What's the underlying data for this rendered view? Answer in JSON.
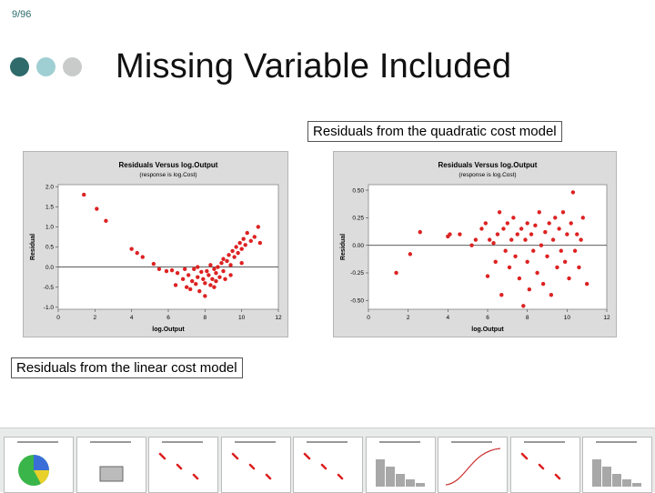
{
  "slide": {
    "page_number": "9/96",
    "title": "Missing Variable Included",
    "dot_colors": [
      "#2f6b6b",
      "#9fcfd3",
      "#c9cbcb"
    ],
    "label_quadratic": "Residuals from the quadratic cost model",
    "label_linear": "Residuals from the linear cost model"
  },
  "chart_data": [
    {
      "type": "scatter",
      "title": "Residuals Versus log.Output",
      "subtitle": "(response is log.Cost)",
      "xlabel": "log.Output",
      "ylabel": "Residual",
      "xlim": [
        0,
        12
      ],
      "ylim": [
        -1.05,
        2.05
      ],
      "xticks": [
        0,
        2,
        4,
        6,
        8,
        10,
        12
      ],
      "yticks": [
        -1.0,
        -0.5,
        0.0,
        0.5,
        1.0,
        1.5,
        2.0
      ],
      "ytick_labels": [
        "-1.0",
        "-0.5",
        "0.0",
        "0.5",
        "1.0",
        "1.5",
        "2.0"
      ],
      "reference_line_y": 0,
      "point_color": "#dd2222",
      "points": [
        [
          1.4,
          1.8
        ],
        [
          2.1,
          1.45
        ],
        [
          2.6,
          1.15
        ],
        [
          4.0,
          0.45
        ],
        [
          4.3,
          0.35
        ],
        [
          4.6,
          0.25
        ],
        [
          5.2,
          0.08
        ],
        [
          5.5,
          -0.05
        ],
        [
          5.9,
          -0.1
        ],
        [
          6.2,
          -0.08
        ],
        [
          6.5,
          -0.15
        ],
        [
          6.4,
          -0.45
        ],
        [
          6.8,
          -0.3
        ],
        [
          7.0,
          -0.5
        ],
        [
          7.1,
          -0.2
        ],
        [
          7.3,
          -0.35
        ],
        [
          7.4,
          -0.05
        ],
        [
          7.5,
          -0.42
        ],
        [
          7.6,
          -0.25
        ],
        [
          7.7,
          -0.6
        ],
        [
          7.8,
          -0.12
        ],
        [
          7.9,
          -0.3
        ],
        [
          8.0,
          -0.4
        ],
        [
          8.0,
          -0.72
        ],
        [
          8.1,
          -0.1
        ],
        [
          8.2,
          -0.2
        ],
        [
          8.3,
          -0.45
        ],
        [
          8.3,
          0.05
        ],
        [
          8.4,
          -0.3
        ],
        [
          8.5,
          -0.05
        ],
        [
          8.6,
          -0.35
        ],
        [
          8.6,
          -0.15
        ],
        [
          8.7,
          0.0
        ],
        [
          8.8,
          -0.25
        ],
        [
          8.9,
          0.1
        ],
        [
          9.0,
          -0.1
        ],
        [
          9.0,
          0.2
        ],
        [
          9.1,
          -0.3
        ],
        [
          9.2,
          0.15
        ],
        [
          9.3,
          0.3
        ],
        [
          9.4,
          0.05
        ],
        [
          9.5,
          0.4
        ],
        [
          9.6,
          0.25
        ],
        [
          9.7,
          0.5
        ],
        [
          9.8,
          0.35
        ],
        [
          9.9,
          0.6
        ],
        [
          10.0,
          0.45
        ],
        [
          10.1,
          0.7
        ],
        [
          10.2,
          0.55
        ],
        [
          10.3,
          0.85
        ],
        [
          10.5,
          0.65
        ],
        [
          10.7,
          0.75
        ],
        [
          10.9,
          1.0
        ],
        [
          11.0,
          0.6
        ],
        [
          7.2,
          -0.55
        ],
        [
          8.5,
          -0.5
        ],
        [
          9.4,
          -0.2
        ],
        [
          6.9,
          -0.05
        ],
        [
          7.6,
          0.0
        ],
        [
          10.0,
          0.1
        ]
      ]
    },
    {
      "type": "scatter",
      "title": "Residuals Versus log.Output",
      "subtitle": "(response is log.Cost)",
      "xlabel": "log.Output",
      "ylabel": "Residual",
      "xlim": [
        0,
        12
      ],
      "ylim": [
        -0.58,
        0.55
      ],
      "xticks": [
        0,
        2,
        4,
        6,
        8,
        10,
        12
      ],
      "yticks": [
        -0.5,
        -0.25,
        0.0,
        0.25,
        0.5
      ],
      "ytick_labels": [
        "-0.50",
        "-0.25",
        "0.00",
        "0.25",
        "0.50"
      ],
      "reference_line_y": 0,
      "point_color": "#dd2222",
      "points": [
        [
          1.4,
          -0.25
        ],
        [
          2.1,
          -0.08
        ],
        [
          2.6,
          0.12
        ],
        [
          4.0,
          0.08
        ],
        [
          4.1,
          0.1
        ],
        [
          4.6,
          0.1
        ],
        [
          5.2,
          0.0
        ],
        [
          5.4,
          0.05
        ],
        [
          5.7,
          0.15
        ],
        [
          5.9,
          0.2
        ],
        [
          6.0,
          -0.28
        ],
        [
          6.1,
          0.05
        ],
        [
          6.3,
          0.02
        ],
        [
          6.4,
          -0.15
        ],
        [
          6.5,
          0.1
        ],
        [
          6.6,
          0.3
        ],
        [
          6.7,
          -0.45
        ],
        [
          6.8,
          0.15
        ],
        [
          6.9,
          -0.05
        ],
        [
          7.0,
          0.2
        ],
        [
          7.1,
          -0.2
        ],
        [
          7.2,
          0.05
        ],
        [
          7.3,
          0.25
        ],
        [
          7.4,
          -0.1
        ],
        [
          7.5,
          0.1
        ],
        [
          7.6,
          -0.3
        ],
        [
          7.7,
          0.15
        ],
        [
          7.8,
          -0.55
        ],
        [
          7.9,
          0.05
        ],
        [
          8.0,
          0.2
        ],
        [
          8.0,
          -0.15
        ],
        [
          8.1,
          -0.4
        ],
        [
          8.2,
          0.1
        ],
        [
          8.3,
          -0.05
        ],
        [
          8.4,
          0.18
        ],
        [
          8.5,
          -0.25
        ],
        [
          8.6,
          0.3
        ],
        [
          8.7,
          0.0
        ],
        [
          8.8,
          -0.35
        ],
        [
          8.9,
          0.12
        ],
        [
          9.0,
          -0.1
        ],
        [
          9.1,
          0.2
        ],
        [
          9.2,
          -0.45
        ],
        [
          9.3,
          0.05
        ],
        [
          9.4,
          0.25
        ],
        [
          9.5,
          -0.2
        ],
        [
          9.6,
          0.15
        ],
        [
          9.7,
          -0.05
        ],
        [
          9.8,
          0.3
        ],
        [
          9.9,
          -0.15
        ],
        [
          10.0,
          0.1
        ],
        [
          10.1,
          -0.3
        ],
        [
          10.2,
          0.2
        ],
        [
          10.3,
          0.48
        ],
        [
          10.4,
          -0.05
        ],
        [
          10.5,
          0.1
        ],
        [
          10.6,
          -0.2
        ],
        [
          10.7,
          0.05
        ],
        [
          10.8,
          0.25
        ],
        [
          11.0,
          -0.35
        ]
      ]
    }
  ],
  "thumbnail_strip": {
    "count": 9,
    "background": "#e9eaea"
  }
}
